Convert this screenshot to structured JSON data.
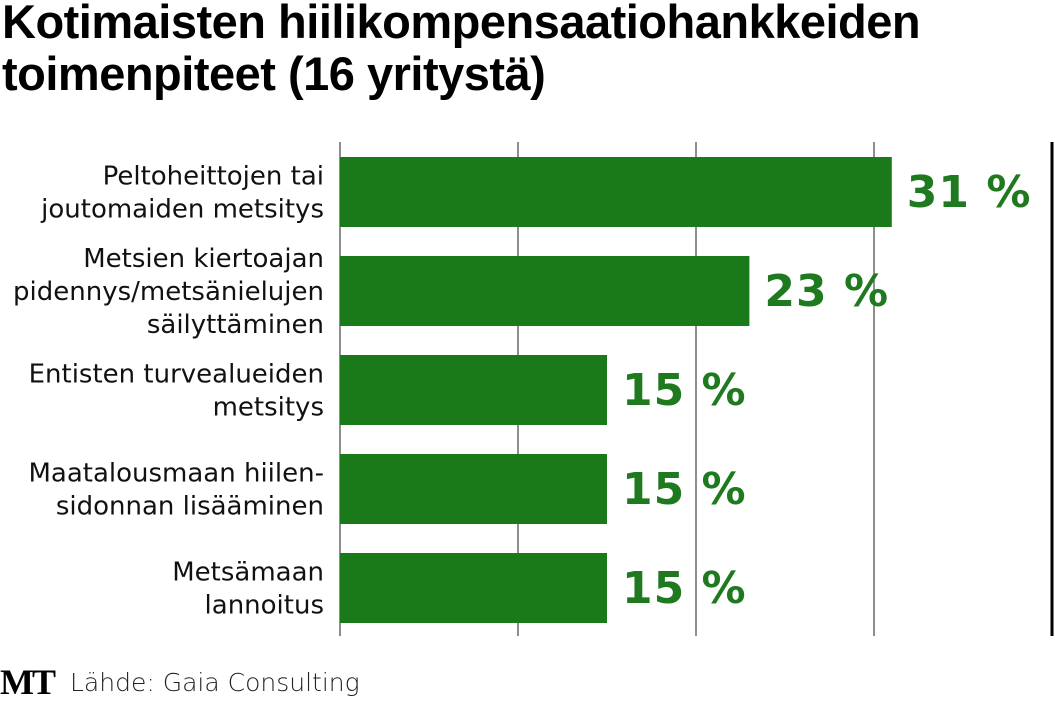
{
  "title_lines": [
    "Kotimaisten hiilikompensaatiohankkeiden",
    "toimenpiteet (16 yritystä)"
  ],
  "footer": {
    "logo": "MT",
    "source": "Lähde: Gaia Consulting"
  },
  "colors": {
    "bar": "#1a7a1a",
    "label": "#1f7a1f",
    "grid": "#444444"
  },
  "chart_data": {
    "type": "bar",
    "orientation": "horizontal",
    "title": "Kotimaisten hiilikompensaatiohankkeiden toimenpiteet (16 yritystä)",
    "categories": [
      [
        "Peltoheittojen tai",
        "joutomaiden metsitys"
      ],
      [
        "Metsien kiertoajan",
        "pidennys/metsänielujen",
        "säilyttäminen"
      ],
      [
        "Entisten turvealueiden",
        "metsitys"
      ],
      [
        "Maatalousmaan hiilen-",
        "sidonnan lisääminen"
      ],
      [
        "Metsämaan",
        "lannoitus"
      ]
    ],
    "values": [
      31,
      23,
      15,
      15,
      15
    ],
    "value_labels": [
      "31 %",
      "23 %",
      "15 %",
      "15 %",
      "15 %"
    ],
    "unit": "%",
    "xlim": [
      0,
      40
    ],
    "grid_step": 10,
    "grid": true
  }
}
